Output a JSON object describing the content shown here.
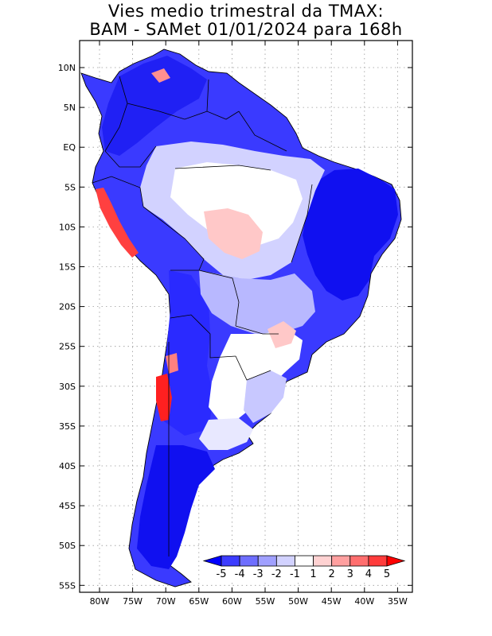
{
  "title_line1": "Vies medio trimestral da TMAX:",
  "title_line2": "BAM - SAMet 01/01/2024  para 168h",
  "lat_labels": [
    "10N",
    "5N",
    "EQ",
    "5S",
    "10S",
    "15S",
    "20S",
    "25S",
    "30S",
    "35S",
    "40S",
    "45S",
    "50S",
    "55S"
  ],
  "lon_labels": [
    "80W",
    "75W",
    "70W",
    "65W",
    "60W",
    "55W",
    "50W",
    "45W",
    "40W",
    "35W"
  ],
  "colorbar": {
    "labels": [
      "-5",
      "-4",
      "-3",
      "-2",
      "-1",
      "1",
      "2",
      "3",
      "4",
      "5"
    ],
    "colors": [
      "#0000ff",
      "#3c3cff",
      "#6e6eff",
      "#a0a0ff",
      "#d2d2ff",
      "#ffffff",
      "#ffd2d2",
      "#ffa0a0",
      "#ff6e6e",
      "#ff3c3c",
      "#ff0000"
    ]
  },
  "map_colors": {
    "strong_blue": "#1010f0",
    "mid_blue": "#4646ff",
    "light_blue": "#9a9aff",
    "pale_blue": "#d2d2ff",
    "pale_red": "#ffc8c8",
    "red": "#ff2020"
  }
}
